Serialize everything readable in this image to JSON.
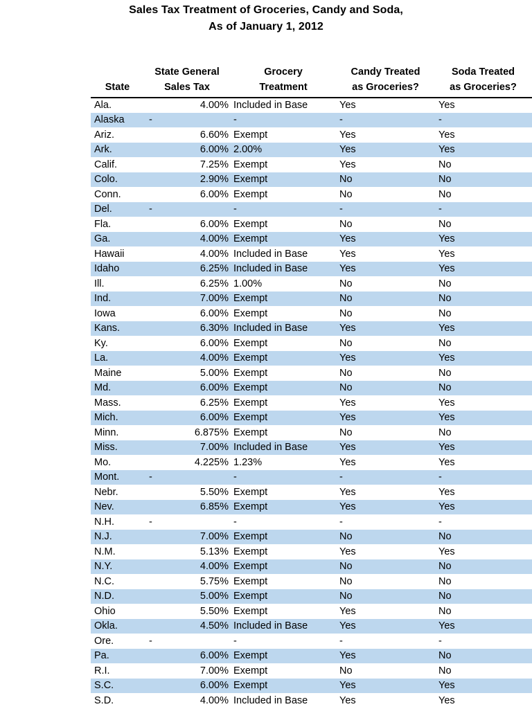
{
  "title": {
    "line1": "Sales Tax Treatment of Groceries, Candy and Soda,",
    "line2": "As of January 1, 2012"
  },
  "colors": {
    "row_alt_blue": "#BDD7EE",
    "text": "#000000",
    "header_rule": "#000000"
  },
  "table": {
    "columns": [
      {
        "key": "state",
        "label": "State"
      },
      {
        "key": "tax",
        "label": "State General\nSales Tax"
      },
      {
        "key": "grocery",
        "label": "Grocery\nTreatment"
      },
      {
        "key": "candy",
        "label": "Candy Treated\nas Groceries?"
      },
      {
        "key": "soda",
        "label": "Soda Treated\nas Groceries?"
      }
    ],
    "rows": [
      [
        "Ala.",
        "4.00%",
        "Included in Base",
        "Yes",
        "Yes"
      ],
      [
        "Alaska",
        "-",
        "-",
        "-",
        "-"
      ],
      [
        "Ariz.",
        "6.60%",
        "Exempt",
        "Yes",
        "Yes"
      ],
      [
        "Ark.",
        "6.00%",
        "2.00%",
        "Yes",
        "Yes"
      ],
      [
        "Calif.",
        "7.25%",
        "Exempt",
        "Yes",
        "No"
      ],
      [
        "Colo.",
        "2.90%",
        "Exempt",
        "No",
        "No"
      ],
      [
        "Conn.",
        "6.00%",
        "Exempt",
        "No",
        "No"
      ],
      [
        "Del.",
        "-",
        "-",
        "-",
        "-"
      ],
      [
        "Fla.",
        "6.00%",
        "Exempt",
        "No",
        "No"
      ],
      [
        "Ga.",
        "4.00%",
        "Exempt",
        "Yes",
        "Yes"
      ],
      [
        "Hawaii",
        "4.00%",
        "Included in Base",
        "Yes",
        "Yes"
      ],
      [
        "Idaho",
        "6.25%",
        "Included in Base",
        "Yes",
        "Yes"
      ],
      [
        "Ill.",
        "6.25%",
        "1.00%",
        "No",
        "No"
      ],
      [
        "Ind.",
        "7.00%",
        "Exempt",
        "No",
        "No"
      ],
      [
        "Iowa",
        "6.00%",
        "Exempt",
        "No",
        "No"
      ],
      [
        "Kans.",
        "6.30%",
        "Included in Base",
        "Yes",
        "Yes"
      ],
      [
        "Ky.",
        "6.00%",
        "Exempt",
        "No",
        "No"
      ],
      [
        "La.",
        "4.00%",
        "Exempt",
        "Yes",
        "Yes"
      ],
      [
        "Maine",
        "5.00%",
        "Exempt",
        "No",
        "No"
      ],
      [
        "Md.",
        "6.00%",
        "Exempt",
        "No",
        "No"
      ],
      [
        "Mass.",
        "6.25%",
        "Exempt",
        "Yes",
        "Yes"
      ],
      [
        "Mich.",
        "6.00%",
        "Exempt",
        "Yes",
        "Yes"
      ],
      [
        "Minn.",
        "6.875%",
        "Exempt",
        "No",
        "No"
      ],
      [
        "Miss.",
        "7.00%",
        "Included in Base",
        "Yes",
        "Yes"
      ],
      [
        "Mo.",
        "4.225%",
        "1.23%",
        "Yes",
        "Yes"
      ],
      [
        "Mont.",
        "-",
        "-",
        "-",
        "-"
      ],
      [
        "Nebr.",
        "5.50%",
        "Exempt",
        "Yes",
        "Yes"
      ],
      [
        "Nev.",
        "6.85%",
        "Exempt",
        "Yes",
        "Yes"
      ],
      [
        "N.H.",
        "-",
        "-",
        "-",
        "-"
      ],
      [
        "N.J.",
        "7.00%",
        "Exempt",
        "No",
        "No"
      ],
      [
        "N.M.",
        "5.13%",
        "Exempt",
        "Yes",
        "Yes"
      ],
      [
        "N.Y.",
        "4.00%",
        "Exempt",
        "No",
        "No"
      ],
      [
        "N.C.",
        "5.75%",
        "Exempt",
        "No",
        "No"
      ],
      [
        "N.D.",
        "5.00%",
        "Exempt",
        "No",
        "No"
      ],
      [
        "Ohio",
        "5.50%",
        "Exempt",
        "Yes",
        "No"
      ],
      [
        "Okla.",
        "4.50%",
        "Included in Base",
        "Yes",
        "Yes"
      ],
      [
        "Ore.",
        "-",
        "-",
        "-",
        "-"
      ],
      [
        "Pa.",
        "6.00%",
        "Exempt",
        "Yes",
        "No"
      ],
      [
        "R.I.",
        "7.00%",
        "Exempt",
        "No",
        "No"
      ],
      [
        "S.C.",
        "6.00%",
        "Exempt",
        "Yes",
        "Yes"
      ],
      [
        "S.D.",
        "4.00%",
        "Included in Base",
        "Yes",
        "Yes"
      ]
    ]
  }
}
